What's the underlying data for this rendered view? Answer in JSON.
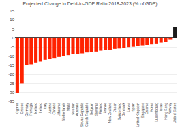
{
  "chart_data": {
    "type": "bar",
    "title": "Projected Change in Debt-to-GDP Ratio 2018-2023 (% of GDP)",
    "categories": [
      "Cyprus",
      "Greece",
      "Germany",
      "Portugal",
      "Iceland",
      "Ireland",
      "Italy",
      "Austria",
      "Canada",
      "Lithuania",
      "Netherlands",
      "Malta",
      "Sweden",
      "Australia",
      "Slovak Republic",
      "Czech Republic",
      "Belgium",
      "Slovenia",
      "Finland",
      "France",
      "New Zealand",
      "Japan",
      "Switzerland",
      "Denmark",
      "Latvia",
      "Spain",
      "United Kingdom",
      "Singapore",
      "Estonia",
      "Korea",
      "Luxembourg",
      "Israel",
      "Hong Kong",
      "Norway",
      "United States"
    ],
    "values": [
      -30.5,
      -25.0,
      -15.0,
      -14.5,
      -13.5,
      -13.0,
      -12.0,
      -11.5,
      -11.0,
      -10.5,
      -10.0,
      -9.5,
      -9.0,
      -8.8,
      -8.5,
      -8.0,
      -7.8,
      -7.5,
      -7.0,
      -6.8,
      -6.5,
      -6.0,
      -5.8,
      -5.5,
      -5.0,
      -4.8,
      -4.5,
      -4.0,
      -3.8,
      -3.5,
      -3.0,
      -2.5,
      -2.0,
      -1.0,
      6.0
    ],
    "colors": [
      "#ff2200",
      "#ff2200",
      "#ff2200",
      "#ff2200",
      "#ff2200",
      "#ff2200",
      "#ff2200",
      "#ff2200",
      "#ff2200",
      "#ff2200",
      "#ff2200",
      "#ff2200",
      "#ff2200",
      "#ff2200",
      "#ff2200",
      "#ff2200",
      "#ff2200",
      "#ff2200",
      "#ff2200",
      "#ff2200",
      "#ff2200",
      "#ff2200",
      "#ff2200",
      "#ff2200",
      "#ff2200",
      "#ff2200",
      "#ff2200",
      "#ff2200",
      "#ff2200",
      "#ff2200",
      "#ff2200",
      "#ff2200",
      "#ff2200",
      "#ff2200",
      "#1a1a1a"
    ],
    "ylim": [
      -35,
      15
    ],
    "yticks": [
      -35,
      -30,
      -25,
      -20,
      -15,
      -10,
      -5,
      0,
      5,
      10,
      15
    ],
    "grid": true
  }
}
